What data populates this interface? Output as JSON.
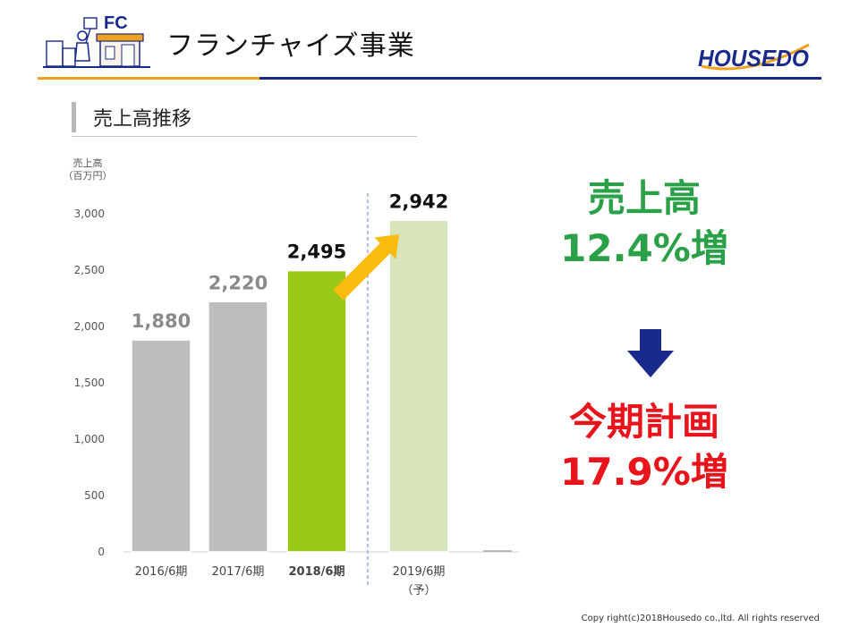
{
  "header": {
    "logo_label": "FC",
    "title": "フランチャイズ事業",
    "brand": "HOUSEDO"
  },
  "section": {
    "title": "売上高推移"
  },
  "chart_data": {
    "type": "bar",
    "ylabel": [
      "売上高",
      "（百万円）"
    ],
    "ylim": [
      0,
      3000
    ],
    "yticks": [
      0,
      500,
      1000,
      1500,
      2000,
      2500,
      3000
    ],
    "ytick_labels": [
      "0",
      "500",
      "1,000",
      "1,500",
      "2,000",
      "2,500",
      "3,000"
    ],
    "categories": [
      "2016/6期",
      "2017/6期",
      "2018/6期",
      "2019/6期"
    ],
    "category_sublabels": [
      "",
      "",
      "",
      "（予）"
    ],
    "values": [
      1880,
      2220,
      2495,
      2942
    ],
    "value_labels": [
      "1,880",
      "2,220",
      "2,495",
      "2,942"
    ],
    "bar_colors": [
      "#bdbdbd",
      "#bdbdbd",
      "#99c817",
      "#d8e4bc"
    ],
    "value_label_colors": [
      "#8a8a8a",
      "#8a8a8a",
      "#111111",
      "#111111"
    ],
    "highlight_category": "2018/6期",
    "forecast_divider": true,
    "arrow_color": "#f9bc0e"
  },
  "callouts": {
    "sales_label": "売上高",
    "sales_growth": "12.4%増",
    "plan_label": "今期計画",
    "plan_growth": "17.9%増",
    "arrow_color": "#1a2a8c"
  },
  "footer": {
    "copyright": "Copy right(c)2018Housedo co.,ltd. All rights reserved"
  }
}
